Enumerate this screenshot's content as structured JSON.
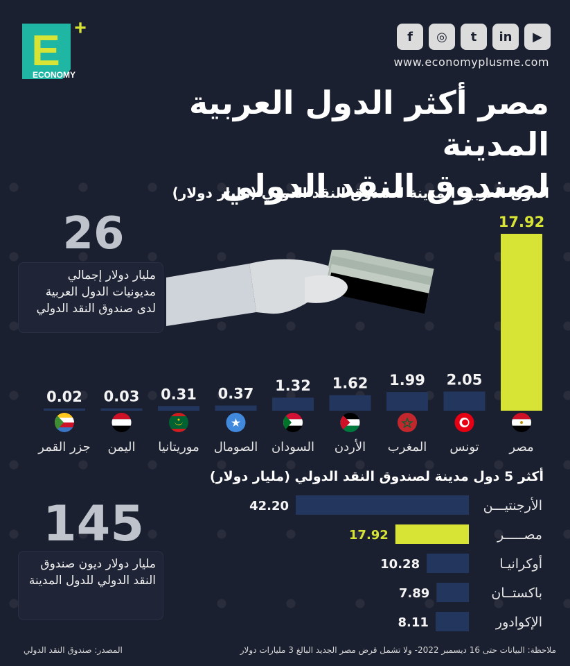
{
  "brand": {
    "logo_letter": "E",
    "logo_plus": "+",
    "logo_text": "ECONOMY",
    "website": "www.economyplusme.com"
  },
  "social": [
    "f",
    "◎",
    "t",
    "in",
    "▶"
  ],
  "title_lines": [
    "مصر أكثر الدول العربية المدينة",
    "لصندوق النقد الدولي"
  ],
  "subtitle": "الدول العربية المدينة لصندوق النقد الدولي (مليار دولار)",
  "box1": {
    "number": "26",
    "text": "مليار دولار إجمالي مديونيات الدول العربية لدى صندوق النقد الدولي"
  },
  "box2": {
    "number": "145",
    "text": "مليار دولار ديون صندوق النقد الدولي للدول المدينة"
  },
  "colors": {
    "bar": "#23365e",
    "highlight": "#d8e435",
    "background": "#1b2030"
  },
  "chart_data": [
    {
      "type": "bar",
      "title": "الدول العربية المدينة لصندوق النقد الدولي (مليار دولار)",
      "categories": [
        "مصر",
        "تونس",
        "المغرب",
        "الأردن",
        "السودان",
        "الصومال",
        "موريتانيا",
        "اليمن",
        "جزر القمر"
      ],
      "values": [
        17.92,
        2.05,
        1.99,
        1.62,
        1.32,
        0.37,
        0.31,
        0.03,
        0.02
      ],
      "labels": [
        "17.92",
        "2.05",
        "1.99",
        "1.62",
        "1.32",
        "0.37",
        "0.31",
        "0.03",
        "0.02"
      ],
      "highlight": "مصر"
    },
    {
      "type": "bar",
      "orientation": "horizontal",
      "title": "أكثر 5 دول مدينة لصندوق النقد الدولي (مليار دولار)",
      "categories": [
        "الأرجنتين",
        "مصر",
        "أوكرانيا",
        "باكستان",
        "الإكوادور"
      ],
      "display_names": [
        "الأرجنتيـــن",
        "مصـــــر",
        "أوكرانيـا",
        "باكستــان",
        "الإكوادور"
      ],
      "values": [
        42.2,
        17.92,
        10.28,
        7.89,
        8.11
      ],
      "labels": [
        "42.20",
        "17.92",
        "10.28",
        "7.89",
        "8.11"
      ],
      "highlight": "مصر"
    }
  ],
  "note": "ملاحظة: البيانات حتى 16 ديسمبر 2022- ولا تشمل قرض مصر الجديد البالغ 3 مليارات دولار",
  "source": "المصدر: صندوق النقد الدولي"
}
